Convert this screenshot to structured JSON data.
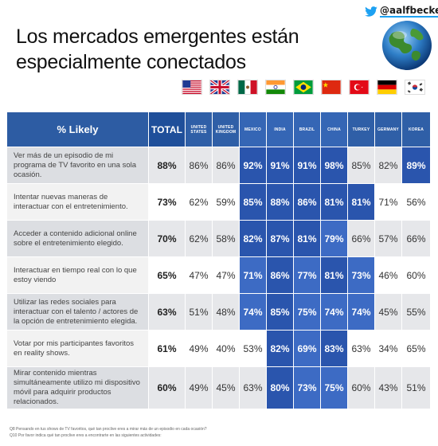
{
  "header": {
    "twitter_handle": "@aalfbecker",
    "title_line1": "Los mercados emergentes están",
    "title_line2": "especialmente conectados"
  },
  "flags": [
    "us-flag-icon",
    "uk-flag-icon",
    "mexico-flag-icon",
    "india-flag-icon",
    "brazil-flag-icon",
    "china-flag-icon",
    "turkey-flag-icon",
    "germany-flag-icon",
    "korea-flag-icon"
  ],
  "colors": {
    "header_blue": "#2f5fa7",
    "highlight_dark": "#2a55ad",
    "highlight_mid": "#3d6bc4",
    "row_alt": "#e6e7ea"
  },
  "chart_data": {
    "type": "table",
    "title": "Los mercados emergentes están especialmente conectados",
    "header_label": "% Likely",
    "total_label": "TOTAL",
    "columns": [
      "UNITED STATES",
      "UNITED KINGDOM",
      "MEXICO",
      "INDIA",
      "BRAZIL",
      "CHINA",
      "TURKEY",
      "GERMANY",
      "KOREA"
    ],
    "rows": [
      {
        "label": "Ver más de un episodio de mi programa de TV favorito en una sola ocasión.",
        "total": "88%",
        "values": [
          "86%",
          "86%",
          "92%",
          "91%",
          "91%",
          "98%",
          "85%",
          "82%",
          "89%"
        ],
        "highlight": [
          false,
          false,
          true,
          true,
          true,
          true,
          false,
          false,
          true
        ]
      },
      {
        "label": "Intentar nuevas maneras de interactuar con el entretenimiento.",
        "total": "73%",
        "values": [
          "62%",
          "59%",
          "85%",
          "88%",
          "86%",
          "81%",
          "81%",
          "71%",
          "56%"
        ],
        "highlight": [
          false,
          false,
          true,
          true,
          true,
          true,
          true,
          false,
          false
        ]
      },
      {
        "label": "Acceder a contenido adicional online sobre el entretenimiento elegido.",
        "total": "70%",
        "values": [
          "62%",
          "58%",
          "82%",
          "87%",
          "81%",
          "79%",
          "66%",
          "57%",
          "66%"
        ],
        "highlight": [
          false,
          false,
          true,
          true,
          true,
          true,
          false,
          false,
          false
        ]
      },
      {
        "label": "Interactuar en tiempo real con lo que estoy viendo",
        "total": "65%",
        "values": [
          "47%",
          "47%",
          "71%",
          "86%",
          "77%",
          "81%",
          "73%",
          "46%",
          "60%"
        ],
        "highlight": [
          false,
          false,
          true,
          true,
          true,
          true,
          true,
          false,
          false
        ]
      },
      {
        "label": "Utilizar las redes sociales para interactuar con el talento / actores de la opción de entretenimiento elegida.",
        "total": "63%",
        "values": [
          "51%",
          "48%",
          "74%",
          "85%",
          "75%",
          "74%",
          "74%",
          "45%",
          "55%"
        ],
        "highlight": [
          false,
          false,
          true,
          true,
          true,
          true,
          true,
          false,
          false
        ]
      },
      {
        "label": "Votar por mis participantes favoritos en reality shows.",
        "total": "61%",
        "values": [
          "49%",
          "40%",
          "53%",
          "82%",
          "69%",
          "83%",
          "63%",
          "34%",
          "65%"
        ],
        "highlight": [
          false,
          false,
          false,
          true,
          true,
          true,
          false,
          false,
          false
        ]
      },
      {
        "label": "Mirar contenido mientras simultáneamente utilizo mi dispositivo móvil para adquirir productos relacionados.",
        "total": "60%",
        "values": [
          "49%",
          "45%",
          "63%",
          "80%",
          "73%",
          "75%",
          "60%",
          "43%",
          "51%"
        ],
        "highlight": [
          false,
          false,
          false,
          true,
          true,
          true,
          false,
          false,
          false
        ]
      }
    ]
  },
  "footnote": {
    "line1": "Q8 Pensando en tus shows de TV favoritos, qué tan proclive eres a mirar más de un episodio en cada ocasión?",
    "line2": "Q10 Por favor indica qué tan proclive eres a encontrarte en las siguientes actividades:"
  }
}
